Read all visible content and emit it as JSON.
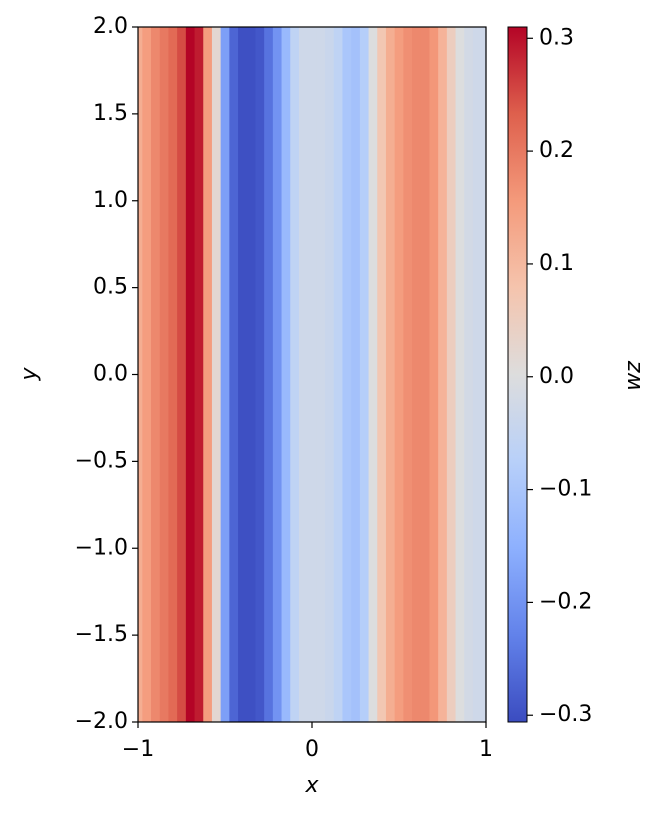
{
  "chart_data": {
    "type": "heatmap",
    "colormap": "coolwarm",
    "x": [
      -1,
      -0.95,
      -0.9,
      -0.85,
      -0.8,
      -0.75,
      -0.7,
      -0.65,
      -0.6,
      -0.55,
      -0.5,
      -0.45,
      -0.4,
      -0.35,
      -0.3,
      -0.25,
      -0.2,
      -0.15,
      -0.1,
      -0.05,
      0,
      0.05,
      0.1,
      0.15,
      0.2,
      0.25,
      0.3,
      0.35,
      0.4,
      0.45,
      0.5,
      0.55,
      0.6,
      0.65,
      0.7,
      0.75,
      0.8,
      0.85,
      0.9,
      0.95,
      1
    ],
    "values": [
      0.12,
      0.15,
      0.18,
      0.2,
      0.22,
      0.25,
      0.31,
      0.29,
      0.15,
      0.02,
      -0.18,
      -0.27,
      -0.3,
      -0.3,
      -0.29,
      -0.25,
      -0.2,
      -0.13,
      -0.06,
      -0.03,
      -0.03,
      -0.03,
      -0.04,
      -0.06,
      -0.1,
      -0.11,
      -0.08,
      0.0,
      0.07,
      0.12,
      0.15,
      0.17,
      0.18,
      0.18,
      0.16,
      0.11,
      0.05,
      0.0,
      -0.02,
      -0.03,
      -0.03
    ],
    "x_label": "x",
    "y_label": "y",
    "colorbar_label": "wz",
    "xlim": [
      -1,
      1
    ],
    "ylim": [
      -2,
      2
    ],
    "clim": [
      -0.306,
      0.31
    ],
    "xticks": [
      {
        "value": -1,
        "label": "−1"
      },
      0,
      1
    ],
    "yticks": [
      {
        "value": -2,
        "label": "−2.0"
      },
      {
        "value": -1.5,
        "label": "−1.5"
      },
      {
        "value": -1,
        "label": "−1.0"
      },
      {
        "value": -0.5,
        "label": "−0.5"
      },
      {
        "value": 0,
        "label": "0.0"
      },
      0.5,
      {
        "value": 1,
        "label": "1.0"
      },
      1.5,
      {
        "value": 2,
        "label": "2.0"
      }
    ],
    "cticks": [
      {
        "value": -0.3,
        "label": "−0.3"
      },
      {
        "value": -0.2,
        "label": "−0.2"
      },
      {
        "value": -0.1,
        "label": "−0.1"
      },
      {
        "value": 0,
        "label": "0.0"
      },
      0.1,
      0.2,
      0.3
    ]
  }
}
